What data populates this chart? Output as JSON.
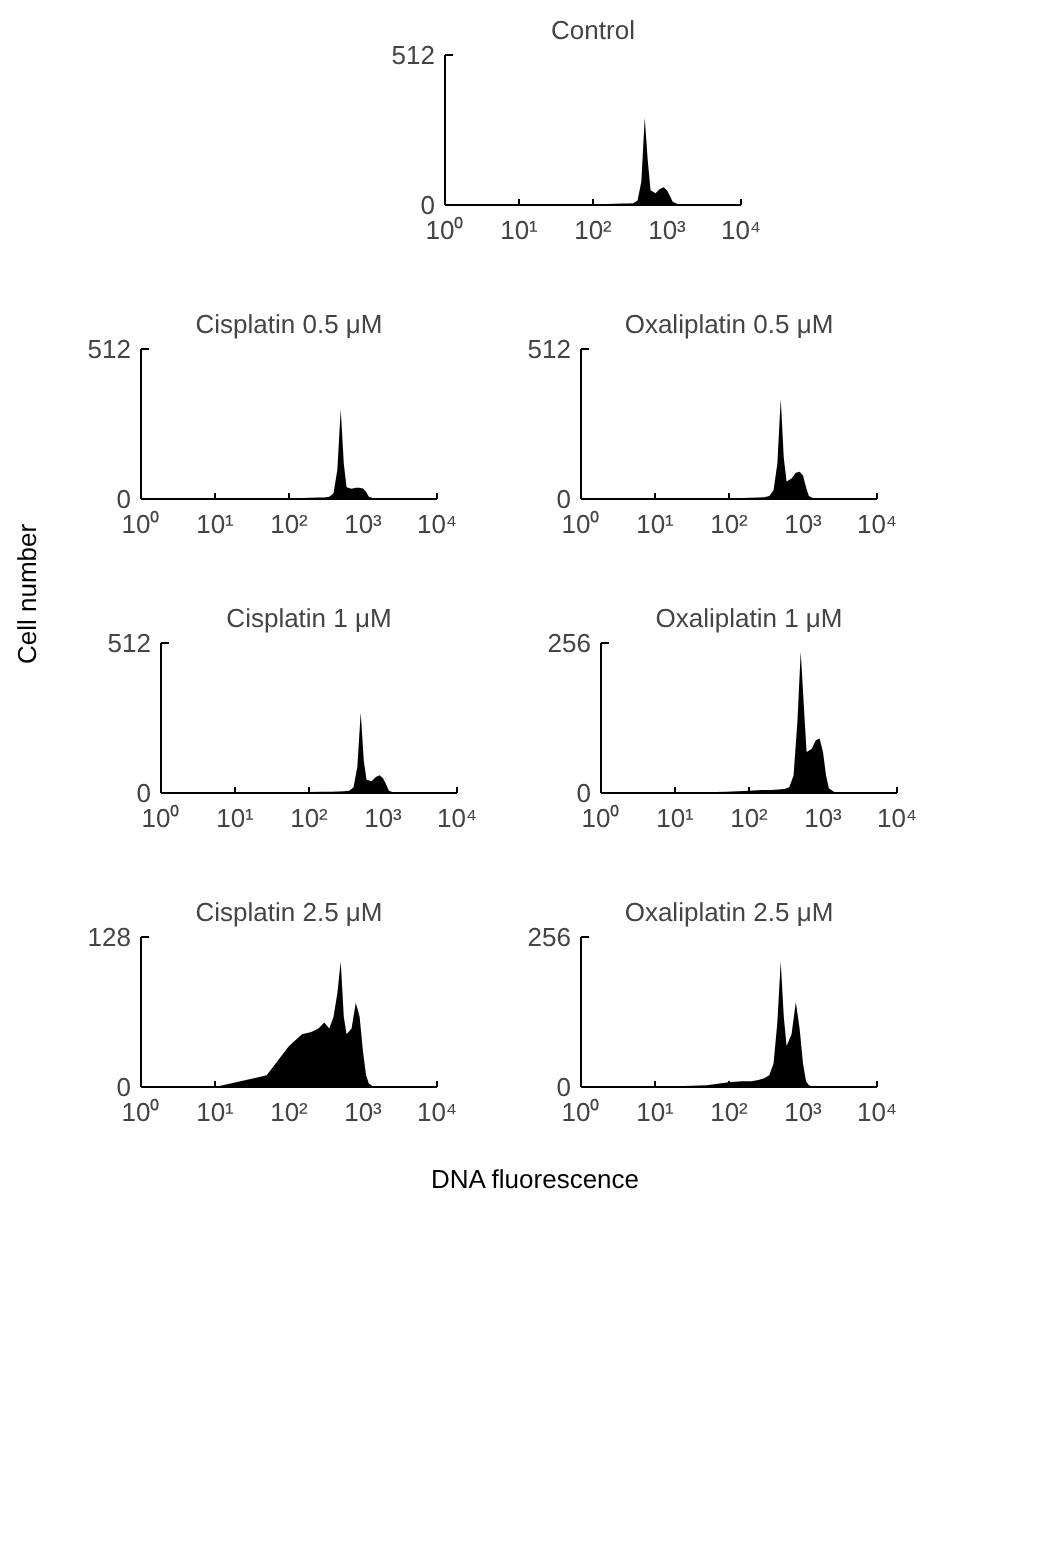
{
  "chart_data": [
    {
      "type": "area",
      "title": "Control",
      "x": [
        1,
        10,
        50,
        100,
        150,
        200,
        250,
        300,
        350,
        400,
        450,
        500,
        550,
        600,
        700,
        800,
        900,
        1000,
        1100,
        1200,
        1400,
        1600,
        2000,
        10000
      ],
      "series": [
        {
          "color": "#000000",
          "values": [
            0,
            0,
            0,
            2,
            3,
            4,
            5,
            5,
            6,
            15,
            80,
            298,
            150,
            50,
            40,
            55,
            61,
            50,
            30,
            10,
            3,
            0,
            0,
            0
          ]
        }
      ],
      "ylim": [
        0,
        512
      ],
      "yticks": [
        0,
        512
      ],
      "xlim": [
        1,
        10000
      ],
      "xticks": [
        {
          "value": 1,
          "label": "10⁰"
        },
        {
          "value": 10,
          "label": "10¹"
        },
        {
          "value": 100,
          "label": "10²"
        },
        {
          "value": 1000,
          "label": "10³"
        },
        {
          "value": 10000,
          "label": "10⁴"
        }
      ],
      "log": "x"
    },
    {
      "type": "area",
      "title": "Cisplatin 0.5 μM",
      "x": [
        1,
        10,
        50,
        100,
        150,
        200,
        250,
        300,
        350,
        400,
        450,
        500,
        550,
        600,
        700,
        800,
        900,
        1000,
        1100,
        1200,
        1400,
        1600,
        2000,
        10000
      ],
      "series": [
        {
          "color": "#000000",
          "values": [
            0,
            0,
            0,
            2,
            3,
            4,
            5,
            5,
            8,
            20,
            100,
            306,
            120,
            40,
            35,
            38,
            38,
            36,
            25,
            8,
            2,
            0,
            0,
            0
          ]
        }
      ],
      "ylim": [
        0,
        512
      ],
      "yticks": [
        0,
        512
      ],
      "xlim": [
        1,
        10000
      ],
      "xticks": [
        {
          "value": 1,
          "label": "10⁰"
        },
        {
          "value": 10,
          "label": "10¹"
        },
        {
          "value": 100,
          "label": "10²"
        },
        {
          "value": 1000,
          "label": "10³"
        },
        {
          "value": 10000,
          "label": "10⁴"
        }
      ],
      "log": "x"
    },
    {
      "type": "area",
      "title": "Oxaliplatin 0.5 μM",
      "x": [
        1,
        10,
        50,
        100,
        150,
        200,
        250,
        300,
        350,
        400,
        450,
        500,
        550,
        600,
        700,
        800,
        900,
        1000,
        1100,
        1200,
        1400,
        1600,
        2000,
        10000
      ],
      "series": [
        {
          "color": "#000000",
          "values": [
            0,
            0,
            0,
            2,
            3,
            4,
            5,
            6,
            10,
            30,
            120,
            341,
            140,
            60,
            70,
            90,
            93,
            80,
            40,
            10,
            2,
            0,
            0,
            0
          ]
        }
      ],
      "ylim": [
        0,
        512
      ],
      "yticks": [
        0,
        512
      ],
      "xlim": [
        1,
        10000
      ],
      "xticks": [
        {
          "value": 1,
          "label": "10⁰"
        },
        {
          "value": 10,
          "label": "10¹"
        },
        {
          "value": 100,
          "label": "10²"
        },
        {
          "value": 1000,
          "label": "10³"
        },
        {
          "value": 10000,
          "label": "10⁴"
        }
      ],
      "log": "x"
    },
    {
      "type": "area",
      "title": "Cisplatin 1 μM",
      "ylabel": "Cell number",
      "x": [
        1,
        10,
        50,
        100,
        150,
        200,
        250,
        300,
        350,
        400,
        450,
        500,
        550,
        600,
        700,
        800,
        900,
        1000,
        1100,
        1200,
        1400,
        1600,
        2000,
        10000
      ],
      "series": [
        {
          "color": "#000000",
          "values": [
            0,
            1,
            2,
            3,
            4,
            4,
            5,
            6,
            8,
            20,
            90,
            275,
            110,
            45,
            40,
            55,
            61,
            50,
            30,
            8,
            2,
            0,
            0,
            0
          ]
        }
      ],
      "ylim": [
        0,
        512
      ],
      "yticks": [
        0,
        512
      ],
      "xlim": [
        1,
        10000
      ],
      "xticks": [
        {
          "value": 1,
          "label": "10⁰"
        },
        {
          "value": 10,
          "label": "10¹"
        },
        {
          "value": 100,
          "label": "10²"
        },
        {
          "value": 1000,
          "label": "10³"
        },
        {
          "value": 10000,
          "label": "10⁴"
        }
      ],
      "log": "x"
    },
    {
      "type": "area",
      "title": "Oxaliplatin 1 μM",
      "x": [
        1,
        10,
        50,
        100,
        150,
        200,
        250,
        300,
        350,
        400,
        450,
        500,
        550,
        600,
        700,
        800,
        900,
        1000,
        1100,
        1200,
        1400,
        1600,
        2000,
        10000
      ],
      "series": [
        {
          "color": "#000000",
          "values": [
            0,
            0,
            2,
            4,
            5,
            5,
            6,
            7,
            10,
            30,
            120,
            241,
            150,
            70,
            75,
            90,
            93,
            70,
            30,
            8,
            2,
            0,
            0,
            0
          ]
        }
      ],
      "ylim": [
        0,
        256
      ],
      "yticks": [
        0,
        256
      ],
      "xlim": [
        1,
        10000
      ],
      "xticks": [
        {
          "value": 1,
          "label": "10⁰"
        },
        {
          "value": 10,
          "label": "10¹"
        },
        {
          "value": 100,
          "label": "10²"
        },
        {
          "value": 1000,
          "label": "10³"
        },
        {
          "value": 10000,
          "label": "10⁴"
        }
      ],
      "log": "x"
    },
    {
      "type": "area",
      "title": "Cisplatin 2.5 μM",
      "xlabel": "DNA fluorescence",
      "x": [
        1,
        10,
        50,
        100,
        150,
        200,
        250,
        300,
        350,
        400,
        450,
        500,
        550,
        600,
        700,
        800,
        900,
        1000,
        1100,
        1200,
        1400,
        1600,
        2000,
        10000
      ],
      "series": [
        {
          "color": "#000000",
          "values": [
            0,
            0,
            10,
            35,
            45,
            47,
            50,
            55,
            50,
            60,
            80,
            107,
            60,
            45,
            50,
            72,
            60,
            30,
            10,
            3,
            0,
            0,
            0,
            0
          ]
        }
      ],
      "ylim": [
        0,
        128
      ],
      "yticks": [
        0,
        128
      ],
      "xlim": [
        1,
        10000
      ],
      "xticks": [
        {
          "value": 1,
          "label": "10⁰"
        },
        {
          "value": 10,
          "label": "10¹"
        },
        {
          "value": 100,
          "label": "10²"
        },
        {
          "value": 1000,
          "label": "10³"
        },
        {
          "value": 10000,
          "label": "10⁴"
        }
      ],
      "log": "x"
    },
    {
      "type": "area",
      "title": "Oxaliplatin 2.5 μM",
      "x": [
        1,
        10,
        50,
        100,
        150,
        200,
        250,
        300,
        350,
        400,
        450,
        500,
        550,
        600,
        700,
        800,
        900,
        1000,
        1100,
        1200,
        1400,
        1600,
        2000,
        10000
      ],
      "series": [
        {
          "color": "#000000",
          "values": [
            0,
            0,
            3,
            8,
            10,
            10,
            12,
            15,
            20,
            40,
            110,
            214,
            120,
            70,
            90,
            145,
            100,
            40,
            10,
            3,
            0,
            0,
            0,
            0
          ]
        }
      ],
      "ylim": [
        0,
        256
      ],
      "yticks": [
        0,
        256
      ],
      "xlim": [
        1,
        10000
      ],
      "xticks": [
        {
          "value": 1,
          "label": "10⁰"
        },
        {
          "value": 10,
          "label": "10¹"
        },
        {
          "value": 100,
          "label": "10²"
        },
        {
          "value": 1000,
          "label": "10³"
        },
        {
          "value": 10000,
          "label": "10⁴"
        }
      ],
      "log": "x"
    }
  ]
}
